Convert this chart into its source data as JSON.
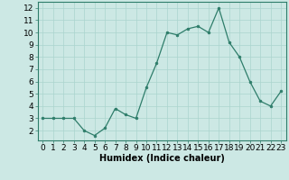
{
  "x": [
    0,
    1,
    2,
    3,
    4,
    5,
    6,
    7,
    8,
    9,
    10,
    11,
    12,
    13,
    14,
    15,
    16,
    17,
    18,
    19,
    20,
    21,
    22,
    23
  ],
  "y": [
    3.0,
    3.0,
    3.0,
    3.0,
    2.0,
    1.6,
    2.2,
    3.8,
    3.3,
    3.0,
    5.5,
    7.5,
    10.0,
    9.8,
    10.3,
    10.5,
    10.0,
    12.0,
    9.2,
    8.0,
    6.0,
    4.4,
    4.0,
    5.2
  ],
  "xlabel": "Humidex (Indice chaleur)",
  "ylim": [
    1.2,
    12.5
  ],
  "xlim": [
    -0.5,
    23.5
  ],
  "yticks": [
    2,
    3,
    4,
    5,
    6,
    7,
    8,
    9,
    10,
    11,
    12
  ],
  "xtick_labels": [
    "0",
    "1",
    "2",
    "3",
    "4",
    "5",
    "6",
    "7",
    "8",
    "9",
    "10",
    "11",
    "12",
    "13",
    "14",
    "15",
    "16",
    "17",
    "18",
    "19",
    "20",
    "21",
    "22",
    "23"
  ],
  "line_color": "#2e7d6a",
  "marker_color": "#2e7d6a",
  "bg_color": "#cce8e4",
  "grid_color": "#aad4ce",
  "axis_bg": "#cce8e4",
  "xlabel_fontsize": 7,
  "tick_fontsize": 6.5
}
